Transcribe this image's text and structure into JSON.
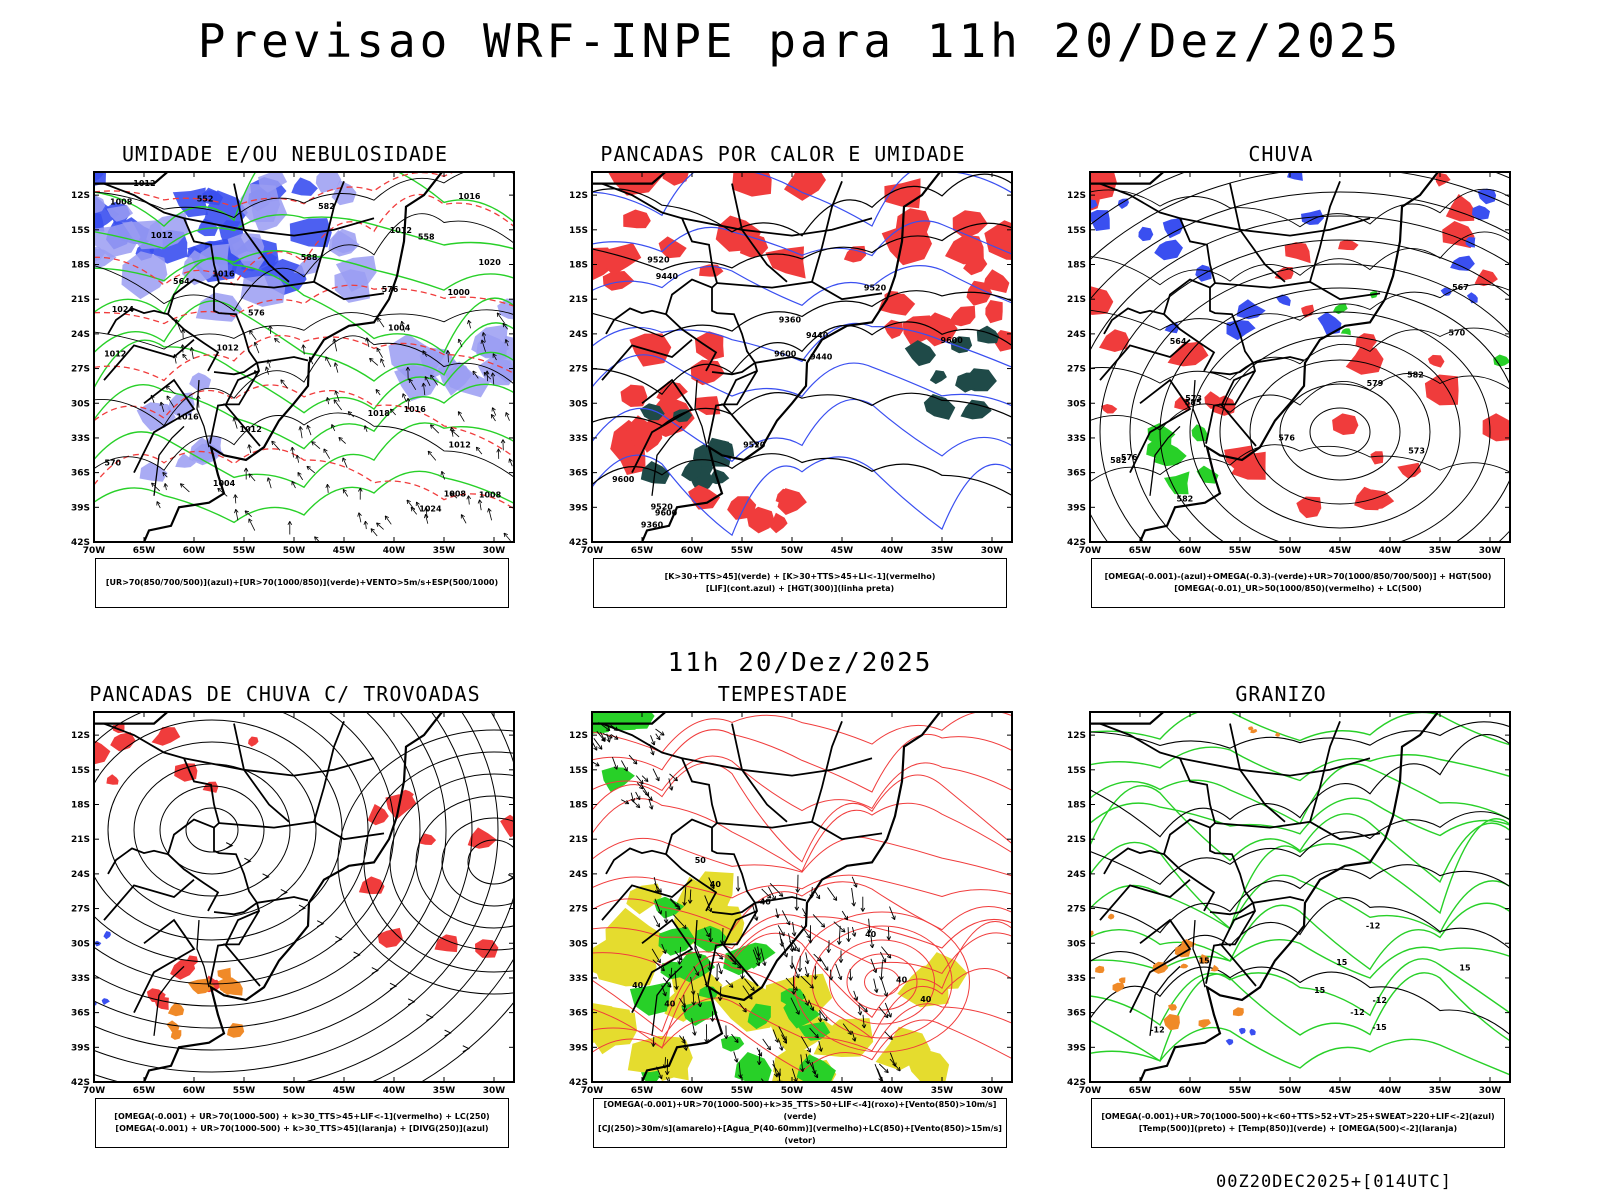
{
  "title": "Previsao WRF-INPE  para 11h 20/Dez/2025",
  "subtitle": "11h 20/Dez/2025",
  "footer": "00Z20DEC2025+[014UTC]",
  "axes": {
    "lat_ticks": [
      "12S",
      "15S",
      "18S",
      "21S",
      "24S",
      "27S",
      "30S",
      "33S",
      "36S",
      "39S",
      "42S"
    ],
    "lon_ticks": [
      "70W",
      "65W",
      "60W",
      "55W",
      "50W",
      "45W",
      "40W",
      "35W",
      "30W"
    ]
  },
  "colors": {
    "blue": "#3a4ff0",
    "lightblue": "#9a9cf2",
    "green": "#28d028",
    "red": "#f03c3c",
    "darkteal": "#1f4a48",
    "yellow": "#e5dc2e",
    "orange": "#f08a28"
  },
  "panels": [
    {
      "title": "UMIDADE E/OU NEBULOSIDADE",
      "legend": [
        "[UR>70(850/700/500)](azul)+[UR>70(1000/850)](verde)+VENTO>5m/s+ESP(500/1000)"
      ],
      "contour_labels": [
        "1012",
        "1012",
        "1012",
        "1008",
        "1012",
        "1004",
        "1016",
        "1008",
        "1012",
        "1016",
        "1016",
        "1016",
        "1012",
        "1004",
        "1000",
        "1012",
        "1008",
        "1020",
        "1024",
        "1024",
        "1018",
        "576",
        "576",
        "570",
        "564",
        "582",
        "588",
        "558",
        "552"
      ]
    },
    {
      "title": "PANCADAS POR CALOR E UMIDADE",
      "legend": [
        "[K>30+TTS>45](verde)  +  [K>30+TTS>45+LI<-1](vermelho)",
        "[LIF](cont.azul)  +  [HGT(300)](linha preta)"
      ],
      "contour_labels": [
        "9600",
        "9600",
        "9600",
        "9520",
        "9520",
        "9440",
        "9520",
        "9440",
        "9360",
        "9600",
        "9520",
        "9360",
        "9440"
      ]
    },
    {
      "title": "CHUVA",
      "legend": [
        "[OMEGA(-0.001)-(azul)+OMEGA(-0.3)-(verde)+UR>70(1000/850/700/500)]  +  HGT(500)",
        "[OMEGA(-0.01)_UR>50(1000/850)(vermelho)  +  LC(500)"
      ],
      "contour_labels": [
        "582",
        "585",
        "582",
        "579",
        "576",
        "573",
        "570",
        "567",
        "564",
        "582",
        "576",
        "573"
      ]
    },
    {
      "title": "PANCADAS DE CHUVA C/ TROVOADAS",
      "legend": [
        "[OMEGA(-0.001)  +  UR>70(1000-500)  +  k>30_TTS>45+LIF<-1](vermelho)  +  LC(250)",
        "[OMEGA(-0.001)  +  UR>70(1000-500)  +  k>30_TTS>45](laranja)  +  [DIVG(250)](azul)"
      ],
      "contour_labels": []
    },
    {
      "title": "TEMPESTADE",
      "legend": [
        "[OMEGA(-0.001)+UR>70(1000-500)+k>35_TTS>50+LIF<-4](roxo)+[Vento(850)>10m/s](verde)",
        "[CJ(250)>30m/s](amarelo)+[Agua_P(40-60mm)](vermelho)+LC(850)+[Vento(850)>15m/s](vetor)"
      ],
      "contour_labels": [
        "40",
        "40",
        "40",
        "40",
        "40",
        "40",
        "50",
        "40"
      ]
    },
    {
      "title": "GRANIZO",
      "legend": [
        "[OMEGA(-0.001)+UR>70(1000-500)+k<60+TTS>52+VT>25+SWEAT>220+LIF<-2](azul)",
        "[Temp(500)](preto)  +  [Temp(850)](verde)  +  [OMEGA(500)<-2](laranja)"
      ],
      "contour_labels": [
        "-12",
        "-12",
        "-12",
        "15",
        "15",
        "-15",
        "-12",
        "15",
        "15"
      ]
    }
  ]
}
